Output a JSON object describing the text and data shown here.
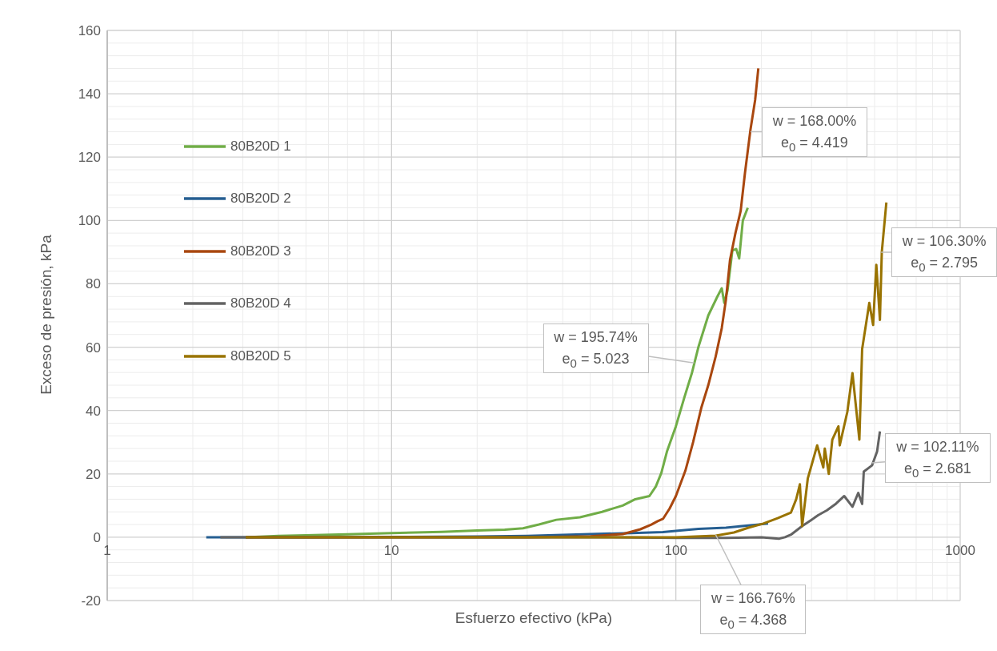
{
  "chart_data": {
    "type": "line",
    "xlabel": "Esfuerzo efectivo (kPa)",
    "ylabel": "Exceso de presión, kPa",
    "log": "x",
    "grid": true,
    "legend": "top left",
    "marker": "none",
    "line_style": "solid",
    "xlim": [
      1,
      1000
    ],
    "xticks": [
      1,
      10,
      100,
      1000
    ],
    "ylim": [
      -20,
      160
    ],
    "yticks": [
      -20,
      0,
      20,
      40,
      60,
      80,
      100,
      120,
      140,
      160
    ],
    "series": [
      {
        "name": "80B20D 1",
        "color": "#70ad47",
        "x": [
          3.07,
          4,
          5,
          7,
          10,
          15,
          20,
          25,
          29,
          33,
          38,
          46,
          55,
          65,
          72,
          80.7,
          85,
          88.9,
          93,
          100,
          107,
          114,
          120,
          130,
          140,
          145,
          148,
          152,
          158,
          163,
          167,
          172,
          179
        ],
        "values": [
          0,
          0.4,
          0.6,
          0.9,
          1.3,
          1.7,
          2.1,
          2.4,
          2.8,
          4,
          5.5,
          6.3,
          8,
          10,
          12,
          13,
          16,
          20.3,
          27,
          35,
          44,
          52,
          60,
          70,
          76,
          78.6,
          74,
          78,
          90.5,
          91,
          88,
          100,
          104
        ]
      },
      {
        "name": "80B20D 2",
        "color": "#255e91",
        "x": [
          2.23,
          3,
          5,
          10,
          20,
          30,
          40,
          50,
          70,
          90,
          100,
          120,
          150,
          180,
          211
        ],
        "values": [
          0,
          0,
          0,
          0.1,
          0.2,
          0.4,
          0.7,
          1,
          1.3,
          1.6,
          2,
          2.6,
          3,
          3.7,
          4.3
        ]
      },
      {
        "name": "80B20D 3",
        "color": "#a9470f",
        "x": [
          3.07,
          10,
          30,
          50,
          65,
          75,
          82,
          86,
          90.1,
          95,
          100,
          108,
          115,
          123,
          130,
          138,
          145,
          150,
          155,
          162,
          169,
          175,
          183,
          190,
          195
        ],
        "values": [
          0,
          0,
          0,
          0.3,
          1,
          2.5,
          4,
          5,
          5.8,
          9,
          13,
          21,
          30,
          41,
          48,
          57,
          66,
          75,
          87.5,
          96,
          103,
          115,
          128.7,
          138,
          148
        ]
      },
      {
        "name": "80B20D 4",
        "color": "#636363",
        "x": [
          2.5,
          5,
          10,
          30,
          60,
          100,
          150,
          200,
          230,
          242,
          254,
          278,
          300,
          317,
          340,
          366,
          391,
          418,
          438,
          452,
          458,
          490,
          510,
          522
        ],
        "values": [
          0,
          0,
          0,
          0,
          0,
          -0.2,
          -0.2,
          0,
          -0.5,
          0,
          0.8,
          3.5,
          5.5,
          7,
          8.5,
          10.6,
          13,
          9.6,
          14,
          10.5,
          20.7,
          22.7,
          27,
          33.4
        ]
      },
      {
        "name": "80B20D 5",
        "color": "#997300",
        "x": [
          3.07,
          10,
          30,
          60,
          100,
          138,
          160,
          180,
          203,
          228,
          254,
          265,
          273,
          278,
          291,
          314,
          330,
          334,
          345,
          355,
          373,
          377,
          401,
          418,
          442,
          452,
          479,
          494,
          507,
          522,
          530,
          550
        ],
        "values": [
          0,
          0,
          0,
          0,
          0,
          0.5,
          1.5,
          3,
          4.3,
          6,
          7.8,
          12,
          16.7,
          3.5,
          18.5,
          29,
          22,
          28,
          20,
          30.8,
          35,
          29,
          39.6,
          51.8,
          30.8,
          59.4,
          74,
          67,
          86,
          68.6,
          90,
          105.7
        ]
      }
    ],
    "annotations": [
      {
        "text": "w = 195.74%\ne$_{0}$ = 5.023",
        "x": 116,
        "y": 55
      },
      {
        "text": "w = 168.00%\ne$_{0}$ = 4.419",
        "x": 183,
        "y": 128
      },
      {
        "text": "w = 106.30%\ne$_{0}$ = 2.795",
        "x": 527,
        "y": 90
      },
      {
        "text": "w = 102.11%\ne$_{0}$ = 2.681",
        "x": 490,
        "y": 23.5
      },
      {
        "text": "w = 166.76%\ne$_{0}$ = 4.368",
        "x": 138,
        "y": 0.8
      }
    ]
  }
}
